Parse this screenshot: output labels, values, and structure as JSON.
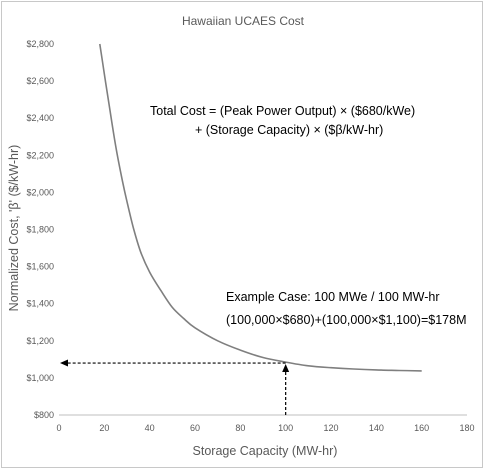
{
  "chart_data": {
    "type": "line",
    "title": "Hawaiian UCAES Cost",
    "xlabel": "Storage Capacity (MW-hr)",
    "ylabel": "Normalized Cost, 'β' ($/kW-hr)",
    "xlim": [
      0,
      180
    ],
    "ylim": [
      800,
      2800
    ],
    "x_ticks": [
      0,
      20,
      40,
      60,
      80,
      100,
      120,
      140,
      160,
      180
    ],
    "x_tick_labels": [
      "0",
      "20",
      "40",
      "60",
      "80",
      "100",
      "120",
      "140",
      "160",
      "180"
    ],
    "y_ticks": [
      800,
      1000,
      1200,
      1400,
      1600,
      1800,
      2000,
      2200,
      2400,
      2600,
      2800
    ],
    "y_tick_labels": [
      "$800",
      "$1,000",
      "$1,200",
      "$1,400",
      "$1,600",
      "$1,800",
      "$2,000",
      "$2,200",
      "$2,400",
      "$2,600",
      "$2,800"
    ],
    "grid": false,
    "legend": "none",
    "series": [
      {
        "color": "#7f7f7f",
        "x": [
          18,
          20,
          22,
          25,
          28,
          30,
          33,
          36,
          40,
          45,
          50,
          55,
          60,
          70,
          80,
          90,
          100,
          110,
          120,
          130,
          140,
          150,
          160
        ],
        "y": [
          2800,
          2640,
          2480,
          2250,
          2060,
          1950,
          1800,
          1680,
          1570,
          1470,
          1380,
          1320,
          1270,
          1200,
          1150,
          1110,
          1085,
          1065,
          1055,
          1048,
          1043,
          1040,
          1038
        ]
      }
    ],
    "annotations": [
      {
        "text_lines": [
          "Total Cost = (Peak Power Output) × ($680/kWe)",
          "+ (Storage Capacity) × ($β/kW-hr)"
        ]
      },
      {
        "text_lines": [
          "Example Case: 100 MWe / 100 MW-hr",
          "(100,000×$680)+(100,000×$1,100)=$178M"
        ]
      }
    ],
    "reference_point": {
      "x": 100,
      "y": 1080
    }
  }
}
